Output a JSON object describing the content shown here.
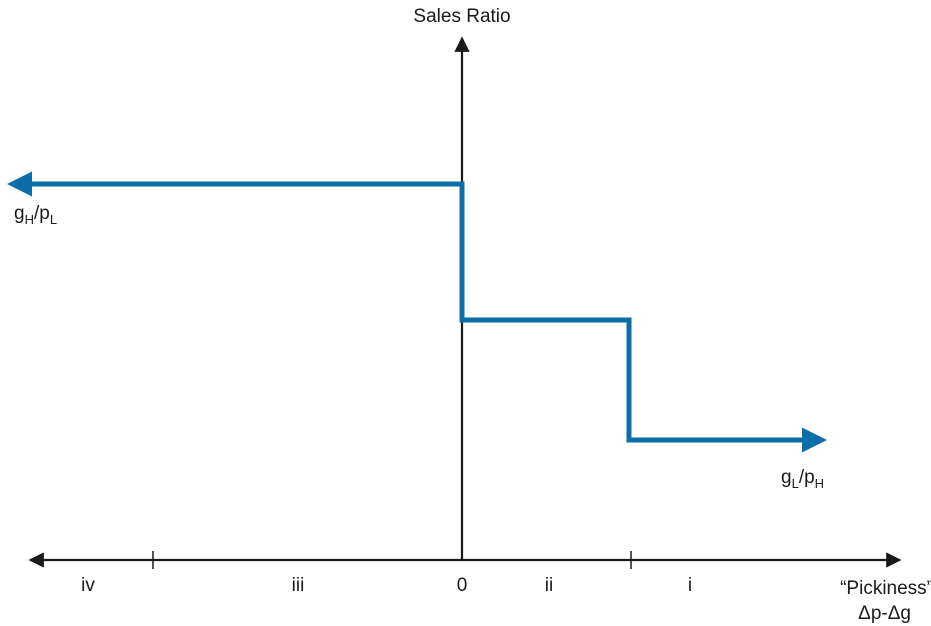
{
  "y_axis": {
    "title": "Sales Ratio"
  },
  "x_axis": {
    "title_line1": "“Pickiness”",
    "title_line2": "Δp-Δg",
    "origin_label": "0",
    "region_labels": {
      "iv": "iv",
      "iii": "iii",
      "ii": "ii",
      "i": "i"
    }
  },
  "curve": {
    "color": "#0a6fa8",
    "high_label": {
      "numerator_base": "g",
      "numerator_sub": "H",
      "slash": "/",
      "denominator_base": "p",
      "denominator_sub": "L"
    },
    "low_label": {
      "numerator_base": "g",
      "numerator_sub": "L",
      "slash": "/",
      "denominator_base": "p",
      "denominator_sub": "H"
    }
  },
  "axis_color": "#1a1a1a"
}
